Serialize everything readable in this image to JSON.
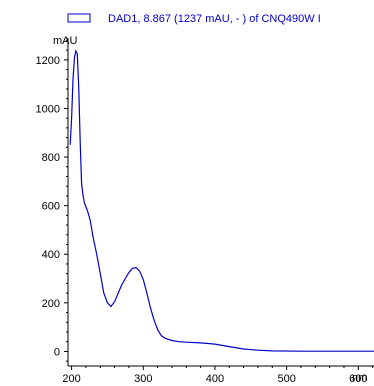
{
  "chart_data": {
    "type": "line",
    "title": "",
    "legend": {
      "label": "DAD1, 8.867 (1237 mAU, - ) of CNQ490W I",
      "placement": "top"
    },
    "xlabel": "nm",
    "ylabel": "mAU",
    "xlim": [
      195,
      700
    ],
    "ylim": [
      -60,
      1290
    ],
    "xticks": [
      200,
      300,
      400,
      500,
      600
    ],
    "yticks": [
      0,
      200,
      400,
      600,
      800,
      1000,
      1200
    ],
    "grid": false,
    "series": [
      {
        "name": "DAD1, 8.867 (1237 mAU, - ) of CNQ490W I",
        "color": "#0000cc",
        "x": [
          198,
          200,
          202,
          204,
          206,
          208,
          210,
          212,
          214,
          216,
          218,
          222,
          226,
          230,
          235,
          240,
          245,
          250,
          255,
          260,
          265,
          270,
          275,
          280,
          285,
          290,
          295,
          300,
          305,
          310,
          315,
          320,
          325,
          330,
          335,
          340,
          350,
          360,
          380,
          400,
          420,
          440,
          460,
          480,
          520,
          560,
          600,
          650,
          700
        ],
        "y": [
          850,
          960,
          1120,
          1210,
          1237,
          1225,
          1080,
          860,
          690,
          640,
          610,
          580,
          540,
          470,
          400,
          320,
          240,
          200,
          185,
          205,
          240,
          275,
          300,
          325,
          342,
          345,
          330,
          295,
          240,
          180,
          130,
          90,
          65,
          55,
          50,
          45,
          40,
          38,
          35,
          30,
          20,
          10,
          5,
          2,
          1,
          1,
          1,
          1,
          1
        ]
      }
    ]
  }
}
